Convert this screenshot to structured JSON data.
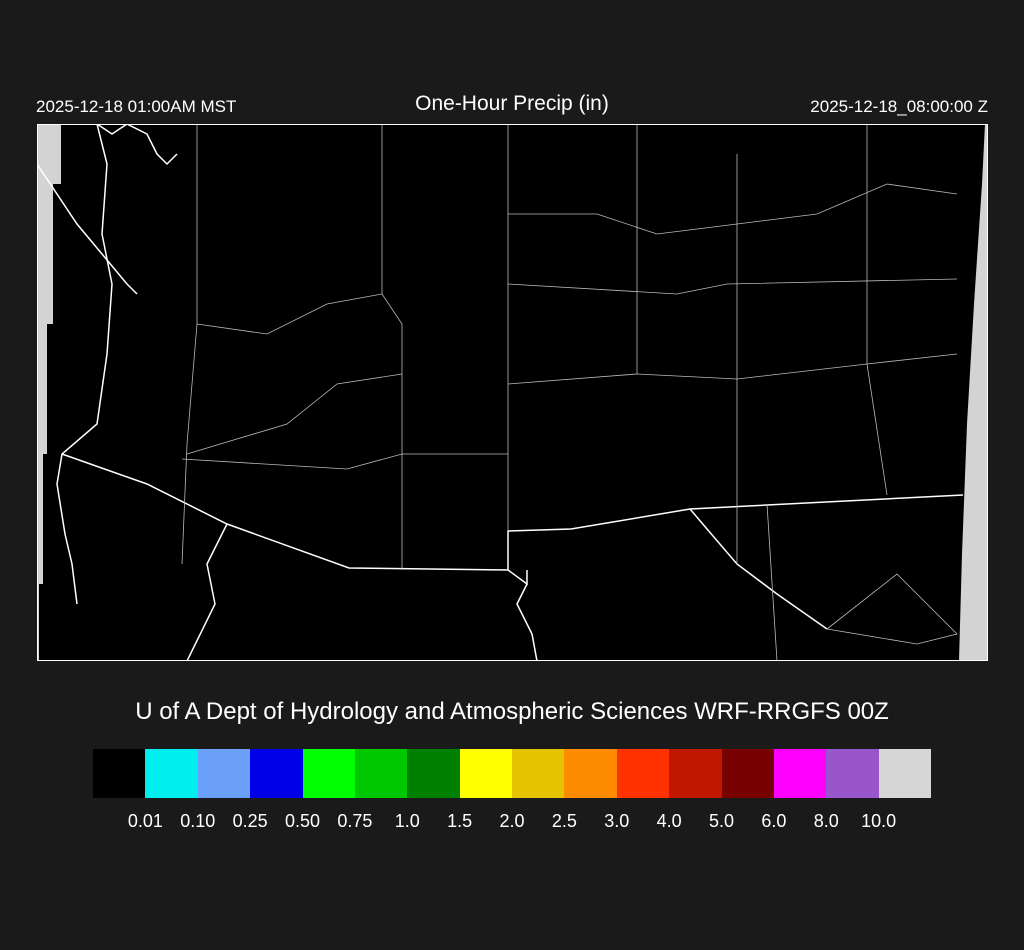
{
  "header": {
    "local_time": "2025-12-18 01:00AM MST",
    "title": "One-Hour Precip (in)",
    "valid_time": "2025-12-18_08:00:00 Z"
  },
  "credit": "U of A Dept of Hydrology and Atmospheric Sciences WRF-RRGFS 00Z",
  "legend": {
    "colors": [
      "#000000",
      "#00eeee",
      "#6ba0f8",
      "#0000e6",
      "#00ff00",
      "#00c800",
      "#008000",
      "#ffff00",
      "#e6c300",
      "#ff8c00",
      "#ff3200",
      "#c01800",
      "#780000",
      "#ff00ff",
      "#9955cc",
      "#d6d6d6"
    ],
    "labels": [
      "0.01",
      "0.10",
      "0.25",
      "0.50",
      "0.75",
      "1.0",
      "1.5",
      "2.0",
      "2.5",
      "3.0",
      "4.0",
      "5.0",
      "6.0",
      "8.0",
      "10.0"
    ]
  },
  "map": {
    "background": "#000000",
    "border_color": "#ffffff",
    "county_color": "#bbbbbb",
    "terrain_contour_color": "#3a2a20",
    "missing_color": "#d3d3d3"
  }
}
